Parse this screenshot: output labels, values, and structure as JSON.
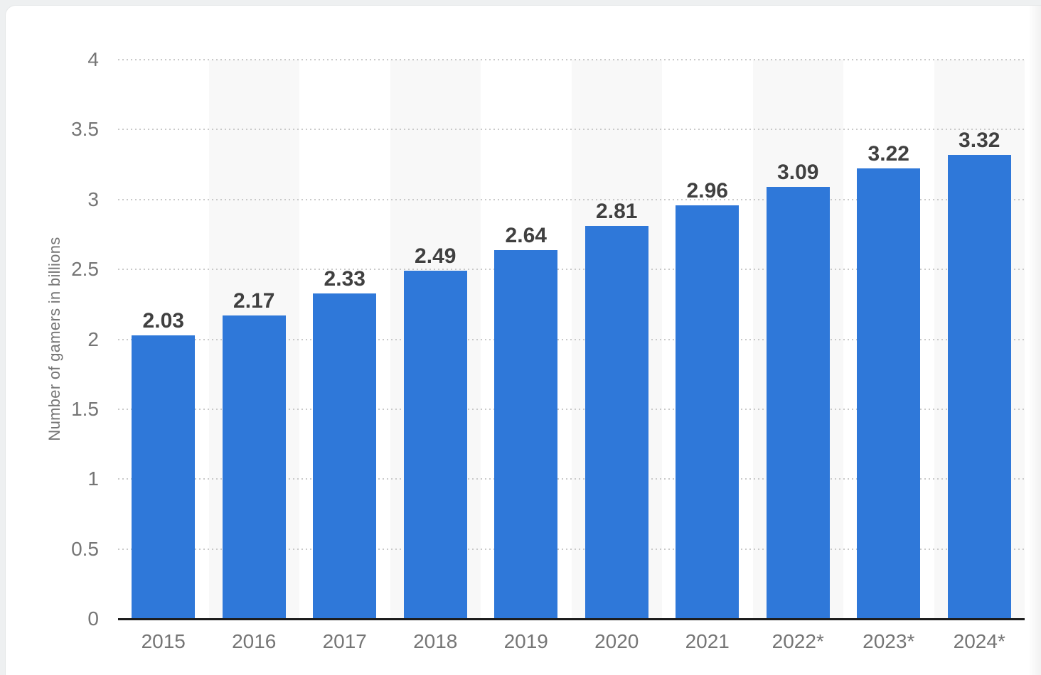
{
  "chart_data": {
    "type": "bar",
    "title": "",
    "xlabel": "",
    "ylabel": "Number of gamers in billions",
    "categories": [
      "2015",
      "2016",
      "2017",
      "2018",
      "2019",
      "2020",
      "2021",
      "2022*",
      "2023*",
      "2024*"
    ],
    "values": [
      2.03,
      2.17,
      2.33,
      2.49,
      2.64,
      2.81,
      2.96,
      3.09,
      3.22,
      3.32
    ],
    "value_labels": [
      "2.03",
      "2.17",
      "2.33",
      "2.49",
      "2.64",
      "2.81",
      "2.96",
      "3.09",
      "3.22",
      "3.32"
    ],
    "ylim": [
      0,
      4
    ],
    "y_ticks": [
      0,
      0.5,
      1,
      1.5,
      2,
      2.5,
      3,
      3.5,
      4
    ],
    "y_tick_labels": [
      "0",
      "0.5",
      "1",
      "1.5",
      "2",
      "2.5",
      "3",
      "3.5",
      "4"
    ],
    "grid": "horizontal-dotted",
    "legend": "none",
    "alternating_column_bands": true,
    "colors": {
      "bar": "#2f78d9",
      "band": "#f8f8f8",
      "gridline": "#c9c9c9",
      "axis_line": "#1c1c1c",
      "tick_label": "#757575",
      "value_label": "#404040",
      "card_bg": "#ffffff",
      "page_bg": "#eef0f1"
    }
  }
}
